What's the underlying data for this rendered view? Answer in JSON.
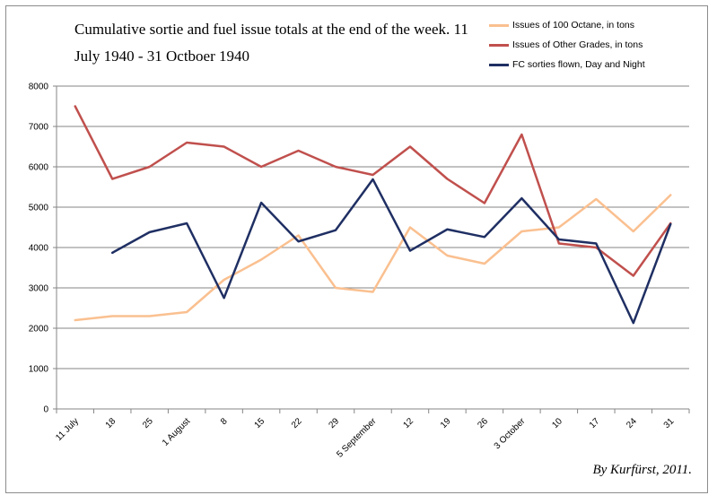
{
  "chart_data": {
    "type": "line",
    "title": "Cumulative sortie and fuel issue totals at the end of the week. 11 July 1940  - 31 Octboer 1940",
    "credit": "By Kurfürst, 2011.",
    "categories": [
      "11 July",
      "18",
      "25",
      "1 August",
      "8",
      "15",
      "22",
      "29",
      "5 September",
      "12",
      "19",
      "26",
      "3 October",
      "10",
      "17",
      "24",
      "31"
    ],
    "ylim": [
      0,
      8000
    ],
    "yticks": [
      0,
      1000,
      2000,
      3000,
      4000,
      5000,
      6000,
      7000,
      8000
    ],
    "grid": true,
    "legend_position": "top-right",
    "series": [
      {
        "name": "Issues of 100 Octane, in tons",
        "color": "#fac090",
        "values": [
          2200,
          2300,
          2300,
          2400,
          3200,
          3700,
          4300,
          3000,
          2900,
          4500,
          3800,
          3600,
          4400,
          4500,
          5200,
          4400,
          5300
        ]
      },
      {
        "name": "Issues of Other Grades, in tons",
        "color": "#c0504d",
        "values": [
          7500,
          5700,
          6000,
          6600,
          6500,
          6000,
          6400,
          6000,
          5800,
          6500,
          5700,
          5100,
          6800,
          4100,
          4000,
          3300,
          4600
        ]
      },
      {
        "name": "FC sorties flown, Day and Night",
        "color": "#1f2f63",
        "values": [
          null,
          3870,
          4380,
          4600,
          2750,
          5110,
          4150,
          4430,
          5690,
          3920,
          4450,
          4260,
          5220,
          4200,
          4100,
          2130,
          4580
        ]
      }
    ]
  }
}
